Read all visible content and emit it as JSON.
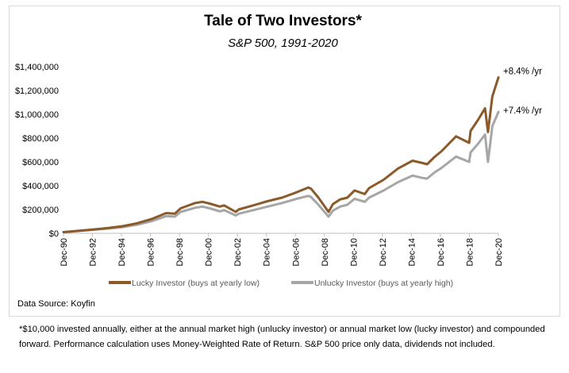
{
  "chart_data": {
    "type": "line",
    "title": "Tale of Two Investors*",
    "subtitle": "S&P 500, 1991-2020",
    "ylim": [
      0,
      1400000
    ],
    "y_ticks": [
      0,
      200000,
      400000,
      600000,
      800000,
      1000000,
      1200000,
      1400000
    ],
    "y_tick_labels": [
      "$0",
      "$200,000",
      "$400,000",
      "$600,000",
      "$800,000",
      "$1,000,000",
      "$1,200,000",
      "$1,400,000"
    ],
    "xlim": [
      1990.917,
      2020.917
    ],
    "x_ticks": [
      1990.917,
      1992.917,
      1994.917,
      1996.917,
      1998.917,
      2000.917,
      2002.917,
      2004.917,
      2006.917,
      2008.917,
      2010.917,
      2012.917,
      2014.917,
      2016.917,
      2018.917,
      2020.917
    ],
    "x_tick_labels": [
      "Dec-90",
      "Dec-92",
      "Dec-94",
      "Dec-96",
      "Dec-98",
      "Dec-00",
      "Dec-02",
      "Dec-04",
      "Dec-06",
      "Dec-08",
      "Dec-10",
      "Dec-12",
      "Dec-14",
      "Dec-16",
      "Dec-18",
      "Dec-20"
    ],
    "series": [
      {
        "name": "Lucky Investor (buys at yearly low)",
        "color": "#8B5A2B",
        "end_label": "+8.4% /yr",
        "x": [
          1990.92,
          1992.0,
          1993.0,
          1994.0,
          1995.0,
          1996.0,
          1997.0,
          1998.0,
          1998.6,
          1999.0,
          2000.0,
          2000.5,
          2001.0,
          2001.7,
          2002.0,
          2002.8,
          2003.0,
          2004.0,
          2005.0,
          2006.0,
          2007.0,
          2007.8,
          2008.0,
          2008.5,
          2009.2,
          2009.5,
          2010.0,
          2010.5,
          2011.0,
          2011.7,
          2012.0,
          2013.0,
          2014.0,
          2015.0,
          2015.7,
          2016.0,
          2016.5,
          2017.0,
          2018.0,
          2018.9,
          2019.0,
          2019.5,
          2020.0,
          2020.2,
          2020.5,
          2020.92
        ],
        "y": [
          10000,
          22000,
          33000,
          45000,
          60000,
          85000,
          120000,
          170000,
          165000,
          210000,
          255000,
          265000,
          250000,
          225000,
          235000,
          180000,
          200000,
          235000,
          270000,
          300000,
          345000,
          385000,
          375000,
          300000,
          180000,
          245000,
          285000,
          300000,
          360000,
          330000,
          380000,
          450000,
          545000,
          610000,
          590000,
          580000,
          640000,
          690000,
          815000,
          760000,
          860000,
          950000,
          1050000,
          850000,
          1150000,
          1310000
        ]
      },
      {
        "name": "Unlucky Investor (buys at yearly high)",
        "color": "#a6a6a6",
        "end_label": "+7.4% /yr",
        "x": [
          1990.92,
          1992.0,
          1993.0,
          1994.0,
          1995.0,
          1996.0,
          1997.0,
          1998.0,
          1998.6,
          1999.0,
          2000.0,
          2000.5,
          2001.0,
          2001.7,
          2002.0,
          2002.8,
          2003.0,
          2004.0,
          2005.0,
          2006.0,
          2007.0,
          2007.8,
          2008.0,
          2008.5,
          2009.2,
          2009.5,
          2010.0,
          2010.5,
          2011.0,
          2011.7,
          2012.0,
          2013.0,
          2014.0,
          2015.0,
          2015.7,
          2016.0,
          2016.5,
          2017.0,
          2018.0,
          2018.9,
          2019.0,
          2019.5,
          2020.0,
          2020.2,
          2020.5,
          2020.92
        ],
        "y": [
          10000,
          20000,
          30000,
          40000,
          52000,
          72000,
          102000,
          145000,
          140000,
          180000,
          215000,
          225000,
          210000,
          185000,
          195000,
          150000,
          165000,
          195000,
          225000,
          255000,
          290000,
          315000,
          305000,
          240000,
          140000,
          190000,
          225000,
          240000,
          290000,
          265000,
          300000,
          360000,
          430000,
          485000,
          465000,
          460000,
          510000,
          550000,
          645000,
          600000,
          680000,
          750000,
          830000,
          600000,
          900000,
          1020000
        ]
      }
    ]
  },
  "source": "Data Source:  Koyfin",
  "footnote": "*$10,000 invested annually, either at the annual market high (unlucky investor) or annual market low (lucky investor) and compounded forward. Performance calculation uses Money-Weighted Rate of Return. S&P 500 price only data, dividends not included."
}
